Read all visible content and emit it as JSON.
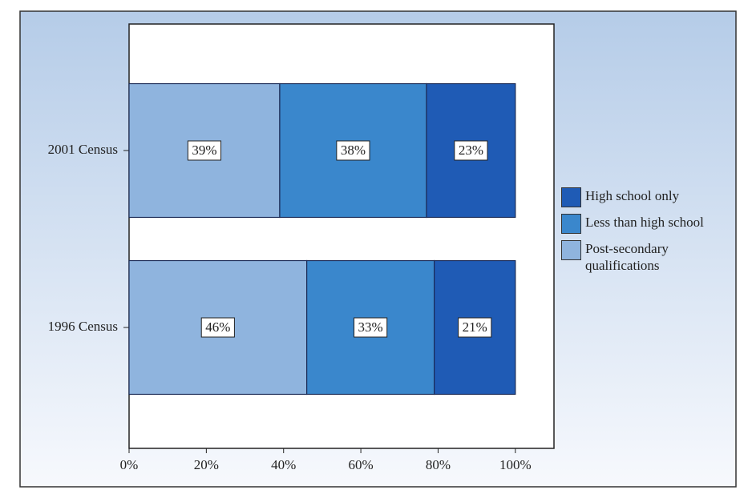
{
  "chart_data": {
    "type": "stacked-barh",
    "categories": [
      "2001 Census",
      "1996 Census"
    ],
    "series": [
      {
        "name": "Post-secondary qualifications",
        "color": "#8fb4de",
        "values": [
          39,
          46
        ],
        "value_labels": [
          "39%",
          "46%"
        ]
      },
      {
        "name": "Less than high school",
        "color": "#3a87cc",
        "values": [
          38,
          33
        ],
        "value_labels": [
          "38%",
          "33%"
        ]
      },
      {
        "name": "High school only",
        "color": "#1f5bb5",
        "values": [
          23,
          21
        ],
        "value_labels": [
          "23%",
          "21%"
        ]
      }
    ],
    "xlim": [
      0,
      110
    ],
    "xticks": [
      {
        "value": 0,
        "label": "0%"
      },
      {
        "value": 20,
        "label": "20%"
      },
      {
        "value": 40,
        "label": "40%"
      },
      {
        "value": 60,
        "label": "60%"
      },
      {
        "value": 80,
        "label": "80%"
      },
      {
        "value": 100,
        "label": "100%"
      }
    ],
    "legend": "right"
  }
}
